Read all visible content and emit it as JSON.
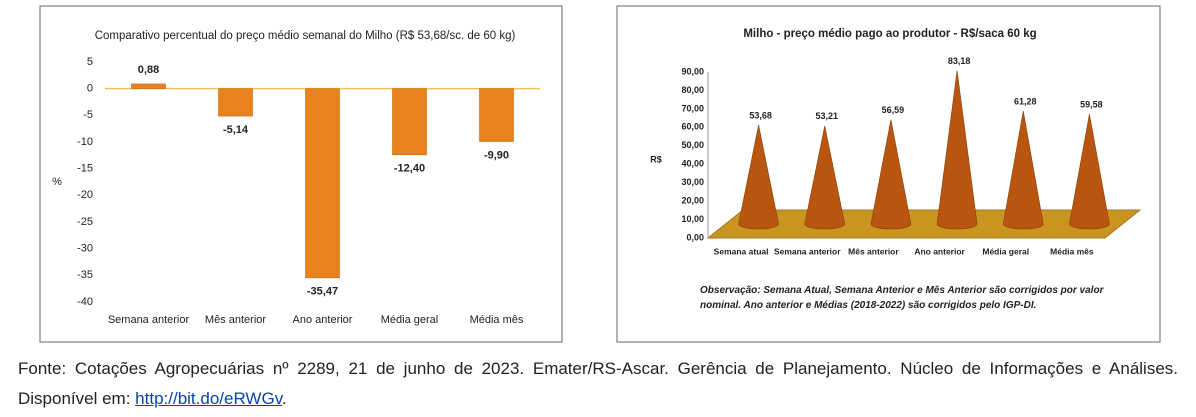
{
  "chart_data": [
    {
      "type": "bar",
      "title": "Comparativo percentual do preço médio semanal do Milho (R$ 53,68/sc. de 60 kg)",
      "y_label": "%",
      "categories": [
        "Semana anterior",
        "Mês anterior",
        "Ano anterior",
        "Média geral",
        "Média mês"
      ],
      "values": [
        0.88,
        -5.14,
        -35.47,
        -12.4,
        -9.9
      ],
      "value_labels": [
        "0,88",
        "-5,14",
        "-35,47",
        "-12,40",
        "-9,90"
      ],
      "color": "#e8821e",
      "ylim": [
        -40,
        5
      ],
      "yticks": [
        5,
        0,
        -5,
        -10,
        -15,
        -20,
        -25,
        -30,
        -35,
        -40
      ],
      "grid": false
    },
    {
      "type": "cone",
      "title": "Milho - preço médio pago ao produtor - R$/saca 60 kg",
      "y_label": "R$",
      "categories": [
        "Semana atual",
        "Semana anterior",
        "Mês anterior",
        "Ano anterior",
        "Média geral",
        "Média mês"
      ],
      "values": [
        53.68,
        53.21,
        56.59,
        83.18,
        61.28,
        59.58
      ],
      "value_labels": [
        "53,68",
        "53,21",
        "56,59",
        "83,18",
        "61,28",
        "59,58"
      ],
      "color": "#b8560f",
      "ylim": [
        0,
        90
      ],
      "yticks": [
        {
          "value": 0,
          "label": "0,00"
        },
        {
          "value": 10,
          "label": "10,00"
        },
        {
          "value": 20,
          "label": "20,00"
        },
        {
          "value": 30,
          "label": "30,00"
        },
        {
          "value": 40,
          "label": "40,00"
        },
        {
          "value": 50,
          "label": "50,00"
        },
        {
          "value": 60,
          "label": "60,00"
        },
        {
          "value": 70,
          "label": "70,00"
        },
        {
          "value": 80,
          "label": "80,00"
        },
        {
          "value": 90,
          "label": "90,00"
        }
      ],
      "grid": false,
      "note": "Observação: Semana Atual, Semana Anterior e Mês Anterior são corrigidos por valor nominal. Ano anterior e Médias (2018-2022) são corrigidos pelo IGP-DI."
    }
  ],
  "caption": {
    "text": "Fonte: Cotações Agropecuárias nº 2289, 21 de junho de 2023. Emater/RS-Ascar. Gerência de Planejamento. Núcleo de Informações e Análises. Disponível em: ",
    "link": "http://bit.do/eRWGv",
    "end": "."
  }
}
